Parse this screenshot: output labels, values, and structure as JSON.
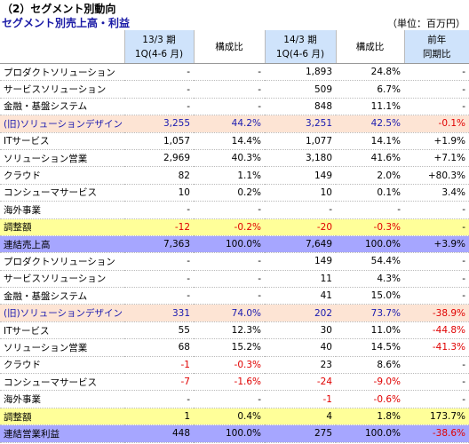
{
  "header": {
    "title": "（2）セグメント別動向",
    "subtitle": "セグメント別売上高・利益",
    "unit": "（単位：百万円）"
  },
  "table": {
    "columns": [
      [
        "13/3 期",
        "1Q(4-6 月)"
      ],
      [
        "構成比"
      ],
      [
        "14/3 期",
        "1Q(4-6 月)"
      ],
      [
        "構成比"
      ],
      [
        "前年",
        "同期比"
      ]
    ],
    "rows": [
      [
        "プロダクトソリューション",
        "-",
        "-",
        "1,893",
        "24.8%",
        "-"
      ],
      [
        "サービスソリューション",
        "-",
        "-",
        "509",
        "6.7%",
        "-"
      ],
      [
        "金融・基盤システム",
        "-",
        "-",
        "848",
        "11.1%",
        "-"
      ],
      [
        "(旧)ソリューションデザイン",
        "3,255",
        "44.2%",
        "3,251",
        "42.5%",
        "-0.1%"
      ],
      [
        "ITサービス",
        "1,057",
        "14.4%",
        "1,077",
        "14.1%",
        "+1.9%"
      ],
      [
        "ソリューション営業",
        "2,969",
        "40.3%",
        "3,180",
        "41.6%",
        "+7.1%"
      ],
      [
        "クラウド",
        "82",
        "1.1%",
        "149",
        "2.0%",
        "+80.3%"
      ],
      [
        "コンシューマサービス",
        "10",
        "0.2%",
        "10",
        "0.1%",
        "3.4%"
      ],
      [
        "海外事業",
        "-",
        "-",
        "-",
        "-",
        "-"
      ],
      [
        "調整額",
        "-12",
        "-0.2%",
        "-20",
        "-0.3%",
        "-"
      ],
      [
        "連結売上高",
        "7,363",
        "100.0%",
        "7,649",
        "100.0%",
        "+3.9%"
      ],
      [
        "プロダクトソリューション",
        "-",
        "-",
        "149",
        "54.4%",
        "-"
      ],
      [
        "サービスソリューション",
        "-",
        "-",
        "11",
        "4.3%",
        "-"
      ],
      [
        "金融・基盤システム",
        "-",
        "-",
        "41",
        "15.0%",
        "-"
      ],
      [
        "(旧)ソリューションデザイン",
        "331",
        "74.0%",
        "202",
        "73.7%",
        "-38.9%"
      ],
      [
        "ITサービス",
        "55",
        "12.3%",
        "30",
        "11.0%",
        "-44.8%"
      ],
      [
        "ソリューション営業",
        "68",
        "15.2%",
        "40",
        "14.5%",
        "-41.3%"
      ],
      [
        "クラウド",
        "-1",
        "-0.3%",
        "23",
        "8.6%",
        "-"
      ],
      [
        "コンシューマサービス",
        "-7",
        "-1.6%",
        "-24",
        "-9.0%",
        "-"
      ],
      [
        "海外事業",
        "-",
        "-",
        "-1",
        "-0.6%",
        "-"
      ],
      [
        "調整額",
        "1",
        "0.4%",
        "4",
        "1.8%",
        "173.7%"
      ],
      [
        "連結営業利益",
        "448",
        "100.0%",
        "275",
        "100.0%",
        "-38.6%"
      ]
    ]
  }
}
